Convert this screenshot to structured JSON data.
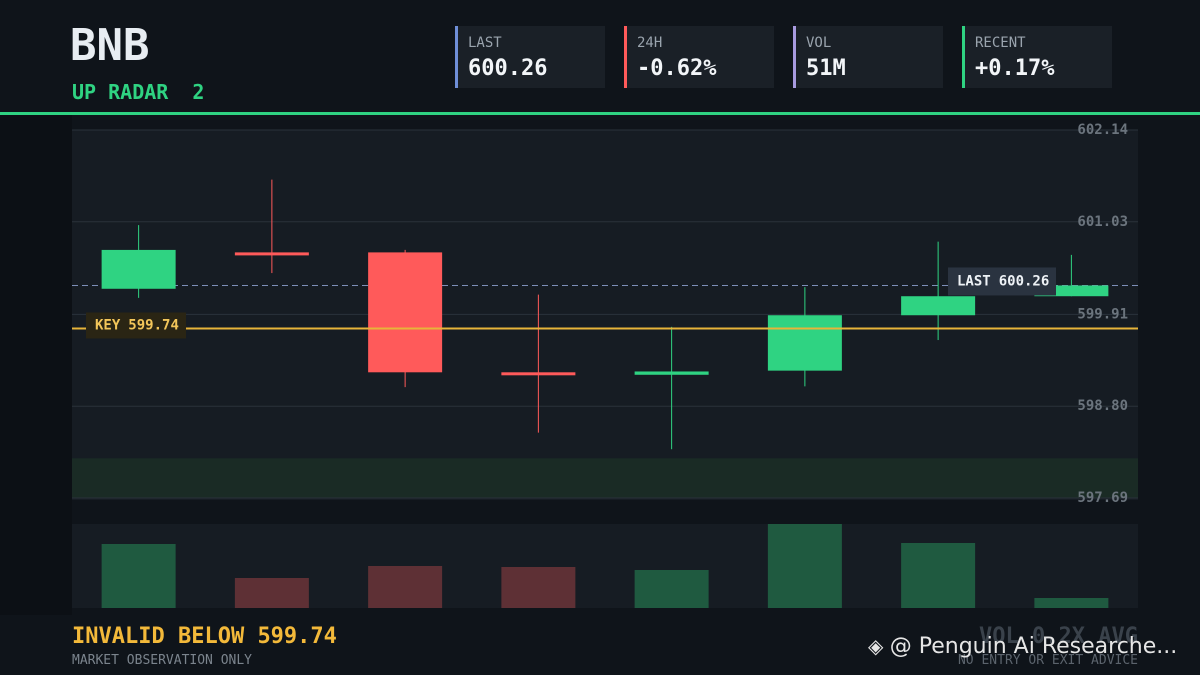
{
  "header": {
    "title": "BNB",
    "subtitle": "UP RADAR",
    "count": 2
  },
  "stats": [
    {
      "label": "LAST",
      "value": "600.26",
      "color": "#6f8fd8"
    },
    {
      "label": "24H",
      "value": "-0.62%",
      "color": "#ff5a5a"
    },
    {
      "label": "VOL",
      "value": "51M",
      "color": "#a89be0"
    },
    {
      "label": "RECENT",
      "value": "+0.17%",
      "color": "#2fd382"
    }
  ],
  "chart_data": {
    "type": "candlestick",
    "open": [
      600.22,
      600.66,
      600.66,
      599.21,
      599.18,
      599.23,
      599.9,
      600.13
    ],
    "high": [
      600.99,
      601.54,
      600.69,
      600.15,
      599.76,
      600.24,
      600.79,
      600.63
    ],
    "low": [
      600.11,
      600.41,
      599.03,
      598.48,
      598.28,
      599.04,
      599.6,
      600.13
    ],
    "close": [
      600.69,
      600.64,
      599.21,
      599.18,
      599.22,
      599.9,
      600.13,
      600.26
    ],
    "volume": [
      64,
      30,
      42,
      41,
      38,
      84,
      65,
      10
    ],
    "volume_ylim": [
      0,
      84
    ],
    "up_color": "#2fd382",
    "down_color": "#ff5a5a",
    "up_volume_color": "#1f5a40",
    "down_volume_color": "#5e3035",
    "ylim": [
      597.69,
      602.14
    ],
    "yticks": [
      597.69,
      {
        "value": 598.8,
        "label": "598.80"
      },
      599.91,
      601.03,
      602.14
    ],
    "grid": true,
    "support_zone": [
      597.69,
      598.17
    ],
    "key_label": "KEY",
    "key_level": 599.74,
    "last_label": "LAST",
    "last_value": 600.26
  },
  "footer": {
    "invalid_label": "INVALID BELOW",
    "note": "MARKET OBSERVATION ONLY",
    "volume_note": "VOL 0.2X AVG",
    "advice": "NO ENTRY OR EXIT ADVICE",
    "watermark": "@ Penguin Ai Researche..."
  }
}
